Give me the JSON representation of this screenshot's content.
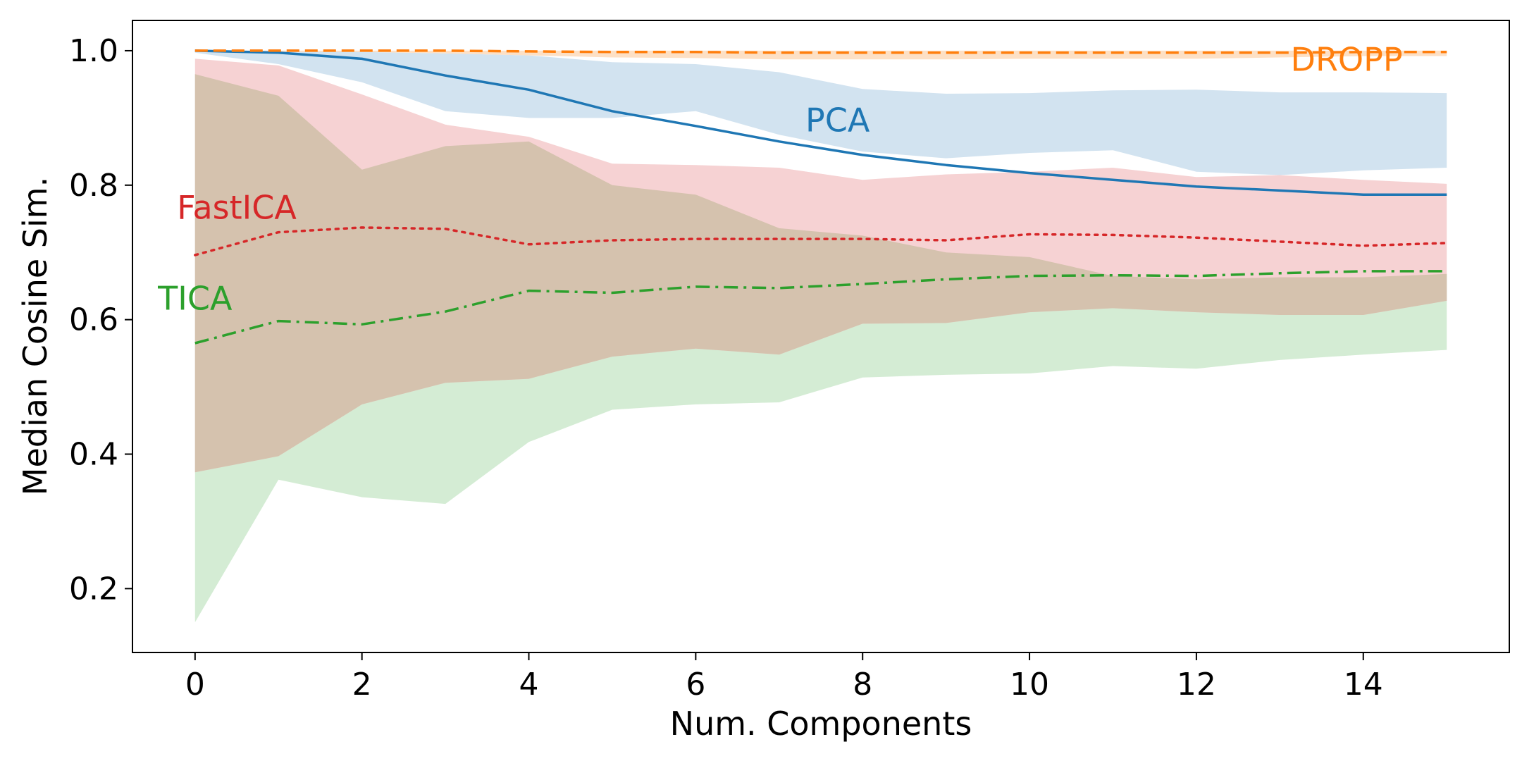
{
  "chart_data": {
    "type": "line",
    "title": "",
    "xlabel": "Num. Components",
    "ylabel": "Median Cosine Sim.",
    "xlim": [
      -0.75,
      15.75
    ],
    "ylim": [
      0.105,
      1.045
    ],
    "x_ticks": [
      0,
      2,
      4,
      6,
      8,
      10,
      12,
      14
    ],
    "y_ticks": [
      0.2,
      0.4,
      0.6,
      0.8,
      1.0
    ],
    "x": [
      0,
      1,
      2,
      3,
      4,
      5,
      6,
      7,
      8,
      9,
      10,
      11,
      12,
      13,
      14,
      15
    ],
    "grid": false,
    "legend": "none",
    "series": [
      {
        "name": "TICA",
        "color": "#2ca02c",
        "band_color": "#d4ecd4",
        "style": "dashdot",
        "label_at": [
          0,
          0.615
        ],
        "values": [
          0.565,
          0.598,
          0.593,
          0.612,
          0.643,
          0.64,
          0.649,
          0.647,
          0.653,
          0.66,
          0.665,
          0.666,
          0.665,
          0.669,
          0.672,
          0.672
        ],
        "lower": [
          0.15,
          0.362,
          0.336,
          0.326,
          0.418,
          0.466,
          0.474,
          0.477,
          0.514,
          0.518,
          0.52,
          0.531,
          0.527,
          0.54,
          0.548,
          0.555
        ],
        "upper": [
          0.965,
          0.933,
          0.823,
          0.858,
          0.865,
          0.8,
          0.786,
          0.736,
          0.725,
          0.7,
          0.693,
          0.665,
          0.66,
          0.663,
          0.663,
          0.668
        ]
      },
      {
        "name": "FastICA",
        "color": "#d62728",
        "band_color": "#f6d2d3",
        "style": "dotted",
        "label_at": [
          0.5,
          0.75
        ],
        "values": [
          0.696,
          0.73,
          0.737,
          0.735,
          0.712,
          0.718,
          0.72,
          0.72,
          0.72,
          0.718,
          0.727,
          0.726,
          0.722,
          0.716,
          0.71,
          0.714
        ],
        "lower": [
          0.373,
          0.397,
          0.474,
          0.506,
          0.512,
          0.545,
          0.557,
          0.548,
          0.594,
          0.595,
          0.611,
          0.617,
          0.611,
          0.607,
          0.607,
          0.628
        ],
        "upper": [
          0.988,
          0.978,
          0.935,
          0.89,
          0.872,
          0.832,
          0.83,
          0.826,
          0.808,
          0.816,
          0.82,
          0.826,
          0.812,
          0.815,
          0.808,
          0.802
        ]
      },
      {
        "name": "PCA",
        "color": "#1f77b4",
        "band_color": "#d2e3f0",
        "style": "solid",
        "label_at": [
          7.7,
          0.88
        ],
        "values": [
          1.0,
          0.997,
          0.988,
          0.963,
          0.942,
          0.91,
          0.888,
          0.865,
          0.845,
          0.83,
          0.818,
          0.808,
          0.798,
          0.792,
          0.786,
          0.786
        ],
        "lower": [
          0.997,
          0.98,
          0.953,
          0.91,
          0.9,
          0.9,
          0.91,
          0.875,
          0.85,
          0.84,
          0.848,
          0.852,
          0.82,
          0.815,
          0.822,
          0.826
        ],
        "upper": [
          1.0,
          1.0,
          0.998,
          0.996,
          0.993,
          0.983,
          0.98,
          0.968,
          0.943,
          0.936,
          0.937,
          0.941,
          0.942,
          0.938,
          0.938,
          0.937
        ]
      },
      {
        "name": "DROPP",
        "color": "#ff7f0e",
        "band_color": "#fde0c5",
        "style": "dashed",
        "label_at": [
          13.8,
          0.97
        ],
        "values": [
          1.0,
          1.0,
          1.0,
          1.0,
          0.999,
          0.998,
          0.998,
          0.997,
          0.997,
          0.997,
          0.997,
          0.997,
          0.997,
          0.997,
          0.998,
          0.998
        ],
        "lower": [
          0.999,
          0.998,
          0.998,
          0.996,
          0.993,
          0.99,
          0.989,
          0.987,
          0.987,
          0.987,
          0.988,
          0.988,
          0.988,
          0.99,
          0.992,
          0.992
        ],
        "upper": [
          1.0,
          1.0,
          1.0,
          1.0,
          1.0,
          1.0,
          1.0,
          1.0,
          1.0,
          1.0,
          1.0,
          1.0,
          1.0,
          1.0,
          1.0,
          1.0
        ]
      }
    ],
    "overlap_colors": {
      "TICA+FastICA": "#d5c2ae",
      "TICA+FastICA+PCA": "#b5b0a4",
      "FastICA+PCA": "#d4bbcc"
    }
  }
}
